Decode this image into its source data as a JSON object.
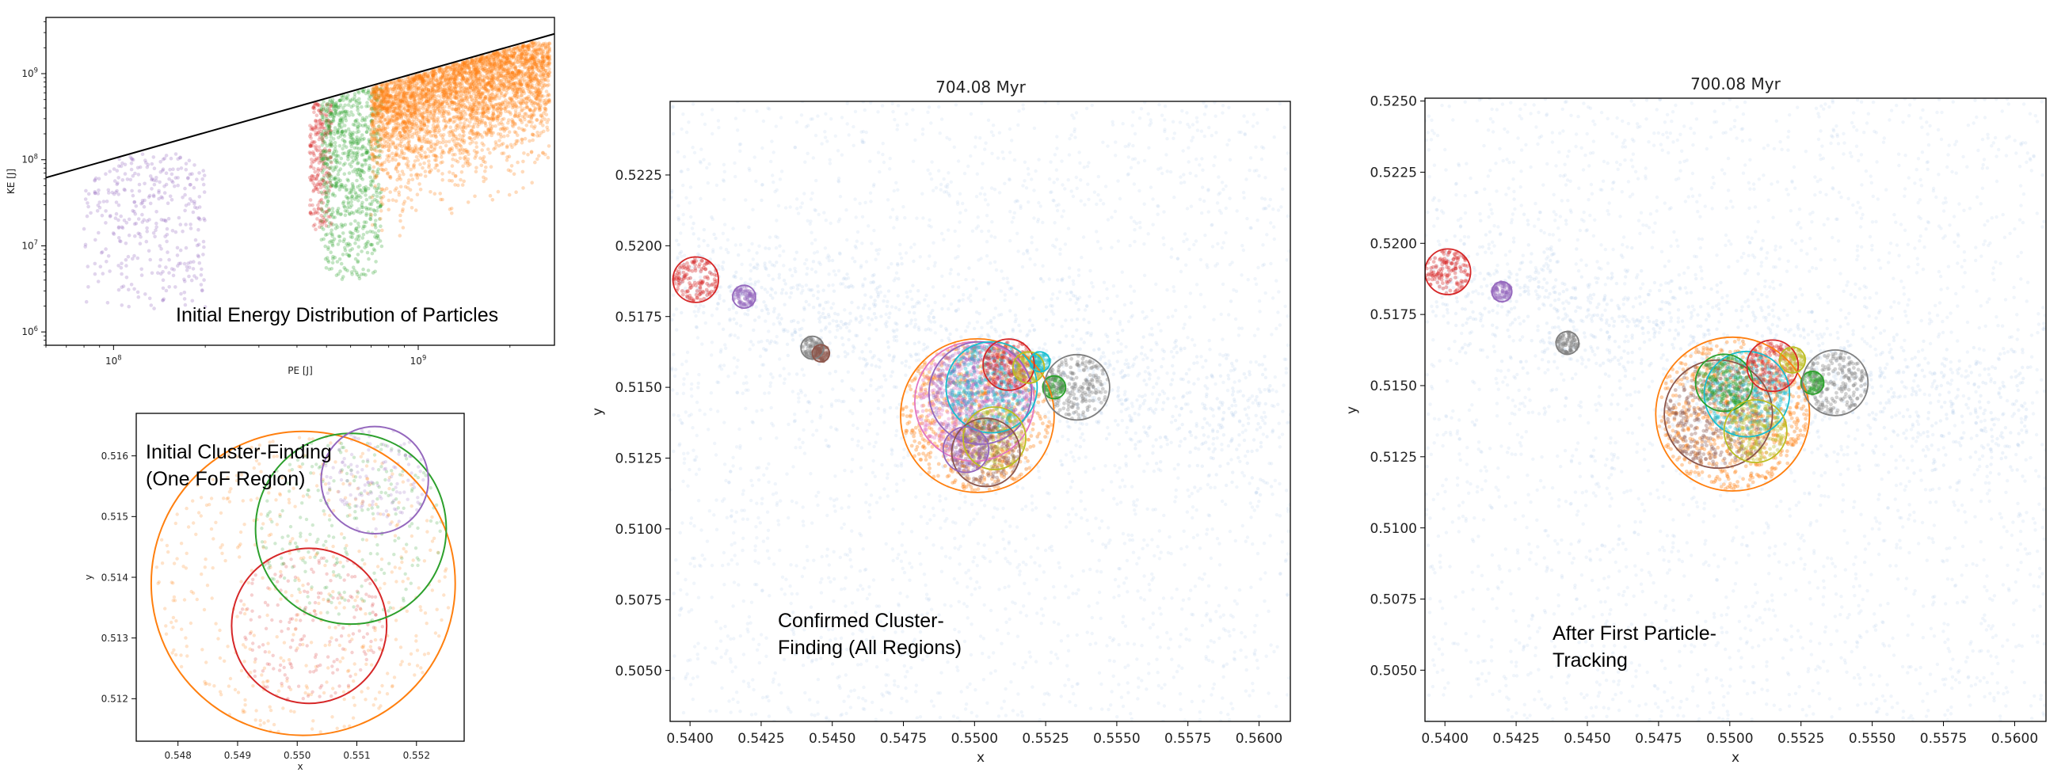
{
  "colors": {
    "purple": "#9467bd",
    "red": "#d62728",
    "green": "#2ca02c",
    "orange": "#ff7f0e",
    "gray": "#7f7f7f",
    "olive": "#bcbd22",
    "cyan": "#17becf",
    "brown": "#8c564b",
    "pink": "#e377c2",
    "background_points": "#aec7e8"
  },
  "chart_data": [
    {
      "type": "scatter",
      "title": "",
      "xlabel": "PE [J]",
      "ylabel": "KE [J]",
      "xscale": "log",
      "yscale": "log",
      "xlim": [
        60000000,
        2800000000
      ],
      "ylim": [
        700000,
        4500000000
      ],
      "xticks": [
        {
          "value": 100000000,
          "label": "10^8"
        },
        {
          "value": 1000000000,
          "label": "10^9"
        }
      ],
      "yticks": [
        {
          "value": 1000000,
          "label": "10^6"
        },
        {
          "value": 10000000,
          "label": "10^7"
        },
        {
          "value": 100000000,
          "label": "10^8"
        },
        {
          "value": 1000000000,
          "label": "10^9"
        }
      ],
      "line": {
        "x": [
          60000000,
          2800000000
        ],
        "y": [
          62000000,
          2900000000
        ]
      },
      "series": [
        {
          "color": "purple",
          "x_range": [
            80000000,
            200000000
          ],
          "y_range": [
            1800000,
            120000000
          ],
          "count": 350
        },
        {
          "color": "red",
          "x_range": [
            440000000,
            520000000
          ],
          "y_range": [
            15000000,
            450000000
          ],
          "count": 250
        },
        {
          "color": "green",
          "x_range": [
            480000000,
            760000000
          ],
          "y_range": [
            4000000,
            700000000
          ],
          "count": 800
        },
        {
          "color": "orange",
          "x_range": [
            700000000,
            2700000000
          ],
          "y_range": [
            2000000,
            2300000000
          ],
          "count": 3500
        }
      ],
      "annotation": "Initial Energy Distribution of Particles",
      "grid": false
    },
    {
      "type": "scatter",
      "title": "",
      "xlabel": "x",
      "ylabel": "y",
      "xlim": [
        0.5473,
        0.5528
      ],
      "ylim": [
        0.5113,
        0.5167
      ],
      "xticks": [
        "0.548",
        "0.549",
        "0.550",
        "0.551",
        "0.552"
      ],
      "yticks": [
        "0.512",
        "0.513",
        "0.514",
        "0.515",
        "0.516"
      ],
      "circles": [
        {
          "cx": 0.5501,
          "cy": 0.5139,
          "r": 0.00255,
          "color": "orange"
        },
        {
          "cx": 0.5502,
          "cy": 0.5132,
          "r": 0.0013,
          "color": "red"
        },
        {
          "cx": 0.5509,
          "cy": 0.5148,
          "r": 0.0016,
          "color": "green"
        },
        {
          "cx": 0.5513,
          "cy": 0.5156,
          "r": 0.0009,
          "color": "purple"
        }
      ],
      "annotation": [
        "Initial Cluster-Finding",
        "(One FoF Region)"
      ],
      "grid": false
    },
    {
      "type": "scatter",
      "title": "704.08 Myr",
      "xlabel": "x",
      "ylabel": "y",
      "xlim": [
        0.5393,
        0.5611
      ],
      "ylim": [
        0.5032,
        0.5251
      ],
      "xticks": [
        "0.5400",
        "0.5425",
        "0.5450",
        "0.5475",
        "0.5500",
        "0.5525",
        "0.5550",
        "0.5575",
        "0.5600"
      ],
      "yticks": [
        "0.5050",
        "0.5075",
        "0.5100",
        "0.5125",
        "0.5150",
        "0.5175",
        "0.5200",
        "0.5225"
      ],
      "circles": [
        {
          "cx": 0.5501,
          "cy": 0.514,
          "r": 0.0027,
          "color": "orange"
        },
        {
          "cx": 0.55,
          "cy": 0.5145,
          "r": 0.0021,
          "color": "pink"
        },
        {
          "cx": 0.5502,
          "cy": 0.5148,
          "r": 0.0018,
          "color": "purple"
        },
        {
          "cx": 0.5506,
          "cy": 0.515,
          "r": 0.0016,
          "color": "cyan"
        },
        {
          "cx": 0.5507,
          "cy": 0.5132,
          "r": 0.0011,
          "color": "olive"
        },
        {
          "cx": 0.5504,
          "cy": 0.5127,
          "r": 0.0012,
          "color": "brown"
        },
        {
          "cx": 0.5497,
          "cy": 0.5128,
          "r": 0.0008,
          "color": "purple"
        },
        {
          "cx": 0.5512,
          "cy": 0.5158,
          "r": 0.0009,
          "color": "red"
        },
        {
          "cx": 0.5519,
          "cy": 0.5157,
          "r": 0.00055,
          "color": "olive"
        },
        {
          "cx": 0.5523,
          "cy": 0.5159,
          "r": 0.00035,
          "color": "cyan"
        },
        {
          "cx": 0.5528,
          "cy": 0.515,
          "r": 0.0004,
          "color": "green"
        },
        {
          "cx": 0.5536,
          "cy": 0.515,
          "r": 0.00115,
          "color": "gray"
        },
        {
          "cx": 0.5402,
          "cy": 0.5188,
          "r": 0.0008,
          "color": "red"
        },
        {
          "cx": 0.5419,
          "cy": 0.5182,
          "r": 0.0004,
          "color": "purple"
        },
        {
          "cx": 0.5443,
          "cy": 0.5164,
          "r": 0.0004,
          "color": "gray"
        },
        {
          "cx": 0.5446,
          "cy": 0.5162,
          "r": 0.0003,
          "color": "brown"
        }
      ],
      "annotation": [
        "Confirmed Cluster-",
        "Finding (All Regions)"
      ],
      "grid": false
    },
    {
      "type": "scatter",
      "title": "700.08 Myr",
      "xlabel": "x",
      "ylabel": "y",
      "xlim": [
        0.5393,
        0.5611
      ],
      "ylim": [
        0.5032,
        0.5251
      ],
      "xticks": [
        "0.5400",
        "0.5425",
        "0.5450",
        "0.5475",
        "0.5500",
        "0.5525",
        "0.5550",
        "0.5575",
        "0.5600"
      ],
      "yticks": [
        "0.5050",
        "0.5075",
        "0.5100",
        "0.5125",
        "0.5150",
        "0.5175",
        "0.5200",
        "0.5225",
        "0.5250"
      ],
      "circles": [
        {
          "cx": 0.5501,
          "cy": 0.514,
          "r": 0.0027,
          "color": "orange"
        },
        {
          "cx": 0.5496,
          "cy": 0.514,
          "r": 0.0019,
          "color": "brown"
        },
        {
          "cx": 0.5506,
          "cy": 0.5147,
          "r": 0.0015,
          "color": "cyan"
        },
        {
          "cx": 0.5498,
          "cy": 0.5151,
          "r": 0.001,
          "color": "green"
        },
        {
          "cx": 0.5509,
          "cy": 0.5134,
          "r": 0.0011,
          "color": "olive"
        },
        {
          "cx": 0.5515,
          "cy": 0.5157,
          "r": 0.0009,
          "color": "red"
        },
        {
          "cx": 0.5522,
          "cy": 0.5159,
          "r": 0.00045,
          "color": "olive"
        },
        {
          "cx": 0.5529,
          "cy": 0.5151,
          "r": 0.0004,
          "color": "green"
        },
        {
          "cx": 0.5537,
          "cy": 0.5151,
          "r": 0.00115,
          "color": "gray"
        },
        {
          "cx": 0.5401,
          "cy": 0.519,
          "r": 0.0008,
          "color": "red"
        },
        {
          "cx": 0.542,
          "cy": 0.5183,
          "r": 0.00035,
          "color": "purple"
        },
        {
          "cx": 0.5443,
          "cy": 0.5165,
          "r": 0.0004,
          "color": "gray"
        }
      ],
      "annotation": [
        "After First Particle-",
        "Tracking"
      ],
      "grid": false
    }
  ]
}
